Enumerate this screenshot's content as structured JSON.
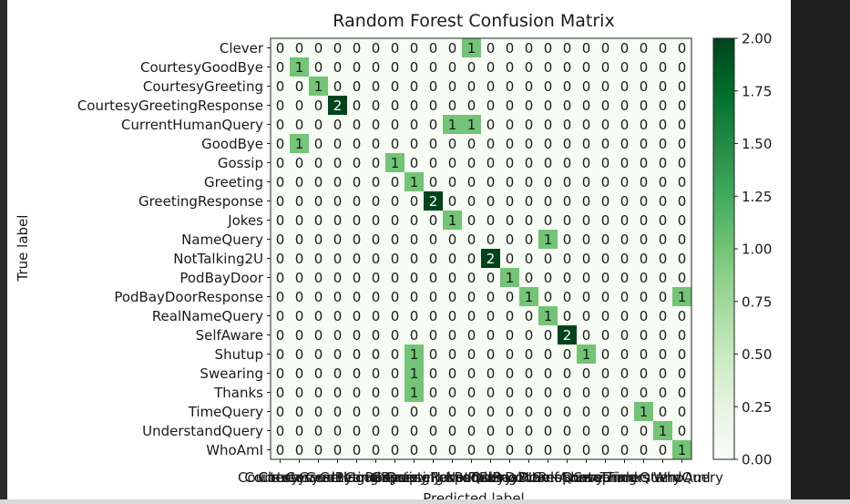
{
  "chart_data": {
    "type": "heatmap",
    "title": "Random Forest Confusion Matrix",
    "xlabel": "Predicted label",
    "ylabel": "True label",
    "labels": [
      "Clever",
      "CourtesyGoodBye",
      "CourtesyGreeting",
      "CourtesyGreetingResponse",
      "CurrentHumanQuery",
      "GoodBye",
      "Gossip",
      "Greeting",
      "GreetingResponse",
      "Jokes",
      "NameQuery",
      "NotTalking2U",
      "PodBayDoor",
      "PodBayDoorResponse",
      "RealNameQuery",
      "SelfAware",
      "Shutup",
      "Swearing",
      "Thanks",
      "TimeQuery",
      "UnderstandQuery",
      "WhoAmI"
    ],
    "matrix": [
      [
        0,
        0,
        0,
        0,
        0,
        0,
        0,
        0,
        0,
        0,
        1,
        0,
        0,
        0,
        0,
        0,
        0,
        0,
        0,
        0,
        0,
        0
      ],
      [
        0,
        1,
        0,
        0,
        0,
        0,
        0,
        0,
        0,
        0,
        0,
        0,
        0,
        0,
        0,
        0,
        0,
        0,
        0,
        0,
        0,
        0
      ],
      [
        0,
        0,
        1,
        0,
        0,
        0,
        0,
        0,
        0,
        0,
        0,
        0,
        0,
        0,
        0,
        0,
        0,
        0,
        0,
        0,
        0,
        0
      ],
      [
        0,
        0,
        0,
        2,
        0,
        0,
        0,
        0,
        0,
        0,
        0,
        0,
        0,
        0,
        0,
        0,
        0,
        0,
        0,
        0,
        0,
        0
      ],
      [
        0,
        0,
        0,
        0,
        0,
        0,
        0,
        0,
        0,
        1,
        1,
        0,
        0,
        0,
        0,
        0,
        0,
        0,
        0,
        0,
        0,
        0
      ],
      [
        0,
        1,
        0,
        0,
        0,
        0,
        0,
        0,
        0,
        0,
        0,
        0,
        0,
        0,
        0,
        0,
        0,
        0,
        0,
        0,
        0,
        0
      ],
      [
        0,
        0,
        0,
        0,
        0,
        0,
        1,
        0,
        0,
        0,
        0,
        0,
        0,
        0,
        0,
        0,
        0,
        0,
        0,
        0,
        0,
        0
      ],
      [
        0,
        0,
        0,
        0,
        0,
        0,
        0,
        1,
        0,
        0,
        0,
        0,
        0,
        0,
        0,
        0,
        0,
        0,
        0,
        0,
        0,
        0
      ],
      [
        0,
        0,
        0,
        0,
        0,
        0,
        0,
        0,
        2,
        0,
        0,
        0,
        0,
        0,
        0,
        0,
        0,
        0,
        0,
        0,
        0,
        0
      ],
      [
        0,
        0,
        0,
        0,
        0,
        0,
        0,
        0,
        0,
        1,
        0,
        0,
        0,
        0,
        0,
        0,
        0,
        0,
        0,
        0,
        0,
        0
      ],
      [
        0,
        0,
        0,
        0,
        0,
        0,
        0,
        0,
        0,
        0,
        0,
        0,
        0,
        0,
        1,
        0,
        0,
        0,
        0,
        0,
        0,
        0
      ],
      [
        0,
        0,
        0,
        0,
        0,
        0,
        0,
        0,
        0,
        0,
        0,
        2,
        0,
        0,
        0,
        0,
        0,
        0,
        0,
        0,
        0,
        0
      ],
      [
        0,
        0,
        0,
        0,
        0,
        0,
        0,
        0,
        0,
        0,
        0,
        0,
        1,
        0,
        0,
        0,
        0,
        0,
        0,
        0,
        0,
        0
      ],
      [
        0,
        0,
        0,
        0,
        0,
        0,
        0,
        0,
        0,
        0,
        0,
        0,
        0,
        1,
        0,
        0,
        0,
        0,
        0,
        0,
        0,
        1
      ],
      [
        0,
        0,
        0,
        0,
        0,
        0,
        0,
        0,
        0,
        0,
        0,
        0,
        0,
        0,
        1,
        0,
        0,
        0,
        0,
        0,
        0,
        0
      ],
      [
        0,
        0,
        0,
        0,
        0,
        0,
        0,
        0,
        0,
        0,
        0,
        0,
        0,
        0,
        0,
        2,
        0,
        0,
        0,
        0,
        0,
        0
      ],
      [
        0,
        0,
        0,
        0,
        0,
        0,
        0,
        1,
        0,
        0,
        0,
        0,
        0,
        0,
        0,
        0,
        1,
        0,
        0,
        0,
        0,
        0
      ],
      [
        0,
        0,
        0,
        0,
        0,
        0,
        0,
        1,
        0,
        0,
        0,
        0,
        0,
        0,
        0,
        0,
        0,
        0,
        0,
        0,
        0,
        0
      ],
      [
        0,
        0,
        0,
        0,
        0,
        0,
        0,
        1,
        0,
        0,
        0,
        0,
        0,
        0,
        0,
        0,
        0,
        0,
        0,
        0,
        0,
        0
      ],
      [
        0,
        0,
        0,
        0,
        0,
        0,
        0,
        0,
        0,
        0,
        0,
        0,
        0,
        0,
        0,
        0,
        0,
        0,
        0,
        1,
        0,
        0
      ],
      [
        0,
        0,
        0,
        0,
        0,
        0,
        0,
        0,
        0,
        0,
        0,
        0,
        0,
        0,
        0,
        0,
        0,
        0,
        0,
        0,
        1,
        0
      ],
      [
        0,
        0,
        0,
        0,
        0,
        0,
        0,
        0,
        0,
        0,
        0,
        0,
        0,
        0,
        0,
        0,
        0,
        0,
        0,
        0,
        0,
        1
      ]
    ],
    "colormap": "Greens",
    "vmin": 0,
    "vmax": 2,
    "colorbar_ticks": [
      "0.00",
      "0.25",
      "0.50",
      "0.75",
      "1.00",
      "1.25",
      "1.50",
      "1.75",
      "2.00"
    ],
    "grid": false
  },
  "colors": {
    "low": "#f7fcf5",
    "one": "#73c476",
    "high": "#00441b",
    "text_dark": "#1a1a1a",
    "text_light": "#ffffff"
  }
}
